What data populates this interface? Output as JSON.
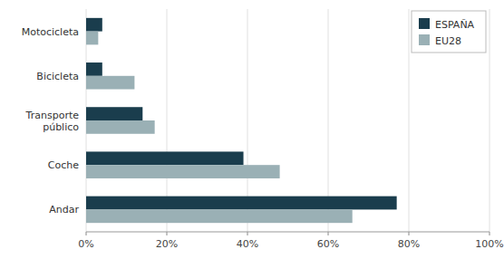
{
  "chart_data": {
    "type": "bar",
    "orientation": "horizontal",
    "categories": [
      "Andar",
      "Coche",
      "Transporte\npúblico",
      "Bicicleta",
      "Motocicleta"
    ],
    "series": [
      {
        "name": "ESPAÑA",
        "color": "#1a3d4d",
        "values": [
          0.77,
          0.39,
          0.14,
          0.04,
          0.04
        ]
      },
      {
        "name": "EU28",
        "color": "#9ab0b5",
        "values": [
          0.66,
          0.48,
          0.17,
          0.12,
          0.03
        ]
      }
    ],
    "xlim": [
      0,
      1.0
    ],
    "xticks": [
      {
        "value": 0.0,
        "label": "0%"
      },
      {
        "value": 0.2,
        "label": "20%"
      },
      {
        "value": 0.4,
        "label": "40%"
      },
      {
        "value": 0.6,
        "label": "60%"
      },
      {
        "value": 0.8,
        "label": "80%"
      },
      {
        "value": 1.0,
        "label": "100%"
      }
    ],
    "grid": true,
    "legend": "upper right"
  }
}
